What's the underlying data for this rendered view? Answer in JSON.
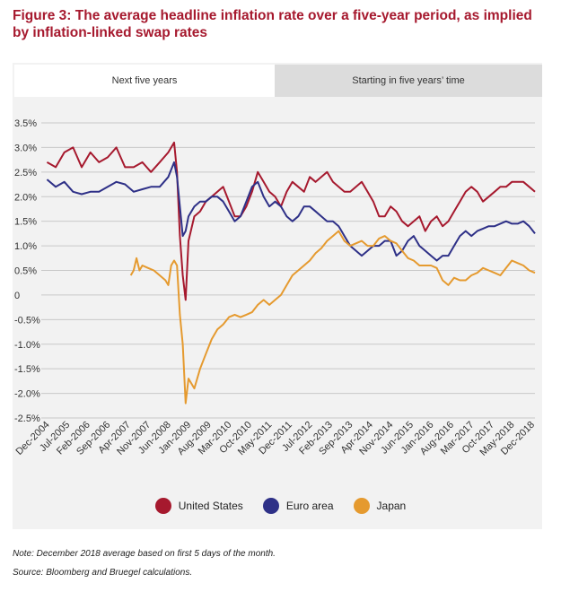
{
  "figure": {
    "title": "Figure 3: The average headline inflation rate over a five-year period, as implied by inflation-linked swap rates",
    "tabs": [
      "Next five years",
      "Starting in five years’ time"
    ],
    "note": "Note: December 2018 average based on first 5 days of the month.",
    "source": "Source: Bloomberg and Bruegel calculations."
  },
  "chart_data": {
    "type": "line",
    "title": "",
    "xlabel": "",
    "ylabel": "",
    "ylim": [
      -2.5,
      3.5
    ],
    "y_ticks": [
      3.5,
      3.0,
      2.5,
      2.0,
      1.5,
      1.0,
      0.5,
      0,
      -0.5,
      -1.0,
      -1.5,
      -2.0,
      -2.5
    ],
    "y_tick_labels": [
      "3.5%",
      "3.0%",
      "2.5%",
      "2.0%",
      "1.5%",
      "1.0%",
      "0.5%",
      "0",
      "-0.5%",
      "-1.0%",
      "-1.5%",
      "-2.0%",
      "-2.5%"
    ],
    "x_tick_labels": [
      "Dec-2004",
      "Jul-2005",
      "Feb-2006",
      "Sep-2006",
      "Apr-2007",
      "Nov-2007",
      "Jun-2008",
      "Jan-2009",
      "Aug-2009",
      "Mar-2010",
      "Oct-2010",
      "May-2011",
      "Dec-2011",
      "Jul-2012",
      "Feb-2013",
      "Sep-2013",
      "Apr-2014",
      "Nov-2014",
      "Jun-2015",
      "Jan-2016",
      "Aug-2016",
      "Mar-2017",
      "Oct-2017",
      "May-2018",
      "Dec-2018"
    ],
    "x_tick_months": [
      0,
      7,
      14,
      21,
      28,
      35,
      42,
      49,
      56,
      63,
      70,
      77,
      84,
      91,
      98,
      105,
      112,
      119,
      126,
      133,
      140,
      147,
      154,
      161,
      168
    ],
    "x_range_months": [
      -3,
      168
    ],
    "grid": true,
    "legend_position": "bottom",
    "series": [
      {
        "name": "United States",
        "color": "#a6192e",
        "x_months": [
          -1,
          2,
          5,
          8,
          11,
          14,
          17,
          20,
          23,
          26,
          29,
          32,
          35,
          38,
          41,
          43,
          44,
          45,
          46,
          47,
          48,
          50,
          52,
          54,
          56,
          58,
          60,
          62,
          64,
          66,
          68,
          70,
          72,
          74,
          76,
          78,
          80,
          82,
          84,
          86,
          88,
          90,
          92,
          94,
          96,
          98,
          100,
          102,
          104,
          106,
          108,
          110,
          112,
          114,
          116,
          118,
          120,
          122,
          124,
          126,
          128,
          130,
          132,
          134,
          136,
          138,
          140,
          142,
          144,
          146,
          148,
          150,
          152,
          154,
          156,
          158,
          160,
          162,
          164,
          166,
          168
        ],
        "values": [
          2.7,
          2.6,
          2.9,
          3.0,
          2.6,
          2.9,
          2.7,
          2.8,
          3.0,
          2.6,
          2.6,
          2.7,
          2.5,
          2.7,
          2.9,
          3.1,
          2.5,
          1.2,
          0.4,
          -0.1,
          1.1,
          1.6,
          1.7,
          1.9,
          2.0,
          2.1,
          2.2,
          1.9,
          1.6,
          1.6,
          1.8,
          2.1,
          2.5,
          2.3,
          2.1,
          2.0,
          1.8,
          2.1,
          2.3,
          2.2,
          2.1,
          2.4,
          2.3,
          2.4,
          2.5,
          2.3,
          2.2,
          2.1,
          2.1,
          2.2,
          2.3,
          2.1,
          1.9,
          1.6,
          1.6,
          1.8,
          1.7,
          1.5,
          1.4,
          1.5,
          1.6,
          1.3,
          1.5,
          1.6,
          1.4,
          1.5,
          1.7,
          1.9,
          2.1,
          2.2,
          2.1,
          1.9,
          2.0,
          2.1,
          2.2,
          2.2,
          2.3,
          2.3,
          2.3,
          2.2,
          2.1
        ]
      },
      {
        "name": "Euro area",
        "color": "#2e3087",
        "x_months": [
          -1,
          2,
          5,
          8,
          11,
          14,
          17,
          20,
          23,
          26,
          29,
          32,
          35,
          38,
          41,
          43,
          44,
          45,
          46,
          47,
          48,
          50,
          52,
          54,
          56,
          58,
          60,
          62,
          64,
          66,
          68,
          70,
          72,
          74,
          76,
          78,
          80,
          82,
          84,
          86,
          88,
          90,
          92,
          94,
          96,
          98,
          100,
          102,
          104,
          106,
          108,
          110,
          112,
          114,
          116,
          118,
          120,
          122,
          124,
          126,
          128,
          130,
          132,
          134,
          136,
          138,
          140,
          142,
          144,
          146,
          148,
          150,
          152,
          154,
          156,
          158,
          160,
          162,
          164,
          166,
          168
        ],
        "values": [
          2.35,
          2.2,
          2.3,
          2.1,
          2.05,
          2.1,
          2.1,
          2.2,
          2.3,
          2.25,
          2.1,
          2.15,
          2.2,
          2.2,
          2.4,
          2.7,
          2.4,
          1.8,
          1.2,
          1.3,
          1.6,
          1.8,
          1.9,
          1.9,
          2.0,
          2.0,
          1.9,
          1.7,
          1.5,
          1.6,
          1.9,
          2.2,
          2.3,
          2.0,
          1.8,
          1.9,
          1.8,
          1.6,
          1.5,
          1.6,
          1.8,
          1.8,
          1.7,
          1.6,
          1.5,
          1.5,
          1.4,
          1.2,
          1.0,
          0.9,
          0.8,
          0.9,
          1.0,
          1.0,
          1.1,
          1.1,
          0.8,
          0.9,
          1.1,
          1.2,
          1.0,
          0.9,
          0.8,
          0.7,
          0.8,
          0.8,
          1.0,
          1.2,
          1.3,
          1.2,
          1.3,
          1.35,
          1.4,
          1.4,
          1.45,
          1.5,
          1.45,
          1.45,
          1.5,
          1.4,
          1.25
        ]
      },
      {
        "name": "Japan",
        "color": "#e59a2f",
        "x_months": [
          28,
          29,
          30,
          31,
          32,
          34,
          36,
          38,
          40,
          41,
          42,
          43,
          44,
          45,
          46,
          47,
          48,
          50,
          52,
          54,
          56,
          58,
          60,
          62,
          64,
          66,
          68,
          70,
          72,
          74,
          76,
          78,
          80,
          82,
          84,
          86,
          88,
          90,
          92,
          94,
          96,
          98,
          100,
          102,
          104,
          106,
          108,
          110,
          112,
          114,
          116,
          118,
          120,
          122,
          124,
          126,
          128,
          130,
          132,
          134,
          136,
          138,
          140,
          142,
          144,
          146,
          148,
          150,
          152,
          154,
          156,
          158,
          160,
          162,
          164,
          166,
          168
        ],
        "values": [
          0.4,
          0.5,
          0.75,
          0.5,
          0.6,
          0.55,
          0.5,
          0.4,
          0.3,
          0.2,
          0.6,
          0.7,
          0.6,
          -0.4,
          -1.0,
          -2.2,
          -1.7,
          -1.9,
          -1.5,
          -1.2,
          -0.9,
          -0.7,
          -0.6,
          -0.45,
          -0.4,
          -0.45,
          -0.4,
          -0.35,
          -0.2,
          -0.1,
          -0.2,
          -0.1,
          0.0,
          0.2,
          0.4,
          0.5,
          0.6,
          0.7,
          0.85,
          0.95,
          1.1,
          1.2,
          1.3,
          1.1,
          1.0,
          1.05,
          1.1,
          1.0,
          1.0,
          1.15,
          1.2,
          1.1,
          1.05,
          0.9,
          0.75,
          0.7,
          0.6,
          0.6,
          0.6,
          0.55,
          0.3,
          0.2,
          0.35,
          0.3,
          0.3,
          0.4,
          0.45,
          0.55,
          0.5,
          0.45,
          0.4,
          0.55,
          0.7,
          0.65,
          0.6,
          0.5,
          0.45
        ]
      }
    ]
  }
}
